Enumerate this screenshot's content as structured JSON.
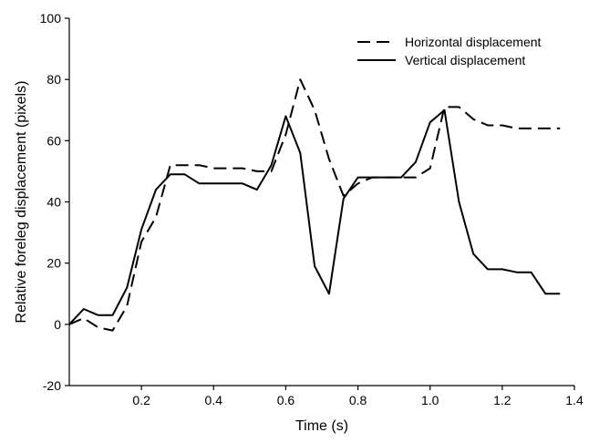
{
  "chart_data": {
    "type": "line",
    "title": "",
    "xlabel": "Time (s)",
    "ylabel": "Relative foreleg displacement (pixels)",
    "xlim": [
      0,
      1.4
    ],
    "ylim": [
      -20,
      100
    ],
    "x_ticks": [
      0.2,
      0.4,
      0.6,
      0.8,
      1.0,
      1.2,
      1.4
    ],
    "x_tick_labels": [
      "0.2",
      "0.4",
      "0.6",
      "0.8",
      "1.0",
      "1.2",
      "1.4"
    ],
    "y_ticks": [
      -20,
      0,
      20,
      40,
      60,
      80,
      100
    ],
    "y_tick_labels": [
      "-20",
      "0",
      "20",
      "40",
      "60",
      "80",
      "100"
    ],
    "grid": false,
    "legend_position": "top-right",
    "series": [
      {
        "name": "Horizontal displacement",
        "style": "dashed",
        "color": "#000000",
        "x": [
          0.0,
          0.04,
          0.08,
          0.12,
          0.16,
          0.2,
          0.24,
          0.28,
          0.32,
          0.36,
          0.4,
          0.44,
          0.48,
          0.52,
          0.56,
          0.6,
          0.64,
          0.68,
          0.72,
          0.76,
          0.8,
          0.84,
          0.88,
          0.92,
          0.96,
          1.0,
          1.04,
          1.08,
          1.12,
          1.16,
          1.2,
          1.24,
          1.28,
          1.32,
          1.36
        ],
        "y": [
          0,
          2,
          -1,
          -2,
          6,
          27,
          35,
          52,
          52,
          52,
          51,
          51,
          51,
          50,
          50,
          62,
          80,
          70,
          54,
          42,
          46,
          48,
          48,
          48,
          48,
          51,
          71,
          71,
          67,
          65,
          65,
          64,
          64,
          64,
          64
        ]
      },
      {
        "name": "Vertical displacement",
        "style": "solid",
        "color": "#000000",
        "x": [
          0.0,
          0.04,
          0.08,
          0.12,
          0.16,
          0.2,
          0.24,
          0.28,
          0.32,
          0.36,
          0.4,
          0.44,
          0.48,
          0.52,
          0.56,
          0.6,
          0.64,
          0.68,
          0.72,
          0.76,
          0.8,
          0.84,
          0.88,
          0.92,
          0.96,
          1.0,
          1.04,
          1.08,
          1.12,
          1.16,
          1.2,
          1.24,
          1.28,
          1.32,
          1.36
        ],
        "y": [
          0,
          5,
          3,
          3,
          12,
          31,
          44,
          49,
          49,
          46,
          46,
          46,
          46,
          44,
          52,
          68,
          56,
          19,
          10,
          41,
          48,
          48,
          48,
          48,
          53,
          66,
          70,
          40,
          23,
          18,
          18,
          17,
          17,
          10,
          10
        ]
      }
    ]
  }
}
